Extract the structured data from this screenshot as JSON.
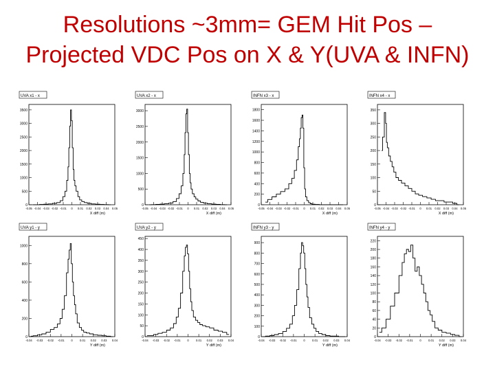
{
  "slide": {
    "title_line1": "Resolutions ~3mm= GEM Hit Pos –",
    "title_line2": "Projected VDC Pos on X & Y(UVA & INFN)"
  },
  "chart_data": [
    {
      "type": "histogram",
      "title": "UVA x1 - x",
      "xlabel": "X diff (m)",
      "xticks": [
        "-0.05",
        "-0.04",
        "-0.03",
        "-0.02",
        "-0.01",
        "0",
        "0.01",
        "0.02",
        "0.03",
        "0.04",
        "0.05"
      ],
      "yticks": [
        0,
        500,
        1000,
        1500,
        2000,
        2500,
        3000,
        3500
      ],
      "xlim": [
        -0.05,
        0.05
      ],
      "ylim": [
        0,
        3700
      ],
      "x": [
        -0.045,
        -0.04,
        -0.035,
        -0.03,
        -0.025,
        -0.02,
        -0.015,
        -0.012,
        -0.009,
        -0.007,
        -0.005,
        -0.004,
        -0.003,
        -0.002,
        -0.001,
        0,
        0.001,
        0.002,
        0.003,
        0.004,
        0.006,
        0.008,
        0.01,
        0.013,
        0.016,
        0.02,
        0.025,
        0.03,
        0.035,
        0.04,
        0.045
      ],
      "values": [
        0,
        0,
        10,
        20,
        30,
        50,
        80,
        150,
        300,
        500,
        900,
        1400,
        2100,
        2900,
        3500,
        3100,
        2100,
        1300,
        900,
        700,
        500,
        300,
        180,
        120,
        80,
        50,
        30,
        20,
        10,
        5,
        0
      ]
    },
    {
      "type": "histogram",
      "title": "UVA x2 - x",
      "xlabel": "X diff (m)",
      "xticks": [
        "-0.05",
        "-0.04",
        "-0.03",
        "-0.02",
        "-0.01",
        "0",
        "0.01",
        "0.02",
        "0.03",
        "0.04",
        "0.05"
      ],
      "yticks": [
        0,
        500,
        1000,
        1500,
        2000,
        2500,
        3000
      ],
      "xlim": [
        -0.05,
        0.05
      ],
      "ylim": [
        0,
        3200
      ],
      "x": [
        -0.045,
        -0.04,
        -0.035,
        -0.03,
        -0.025,
        -0.02,
        -0.015,
        -0.012,
        -0.009,
        -0.007,
        -0.005,
        -0.004,
        -0.003,
        -0.002,
        -0.001,
        0,
        0.001,
        0.002,
        0.003,
        0.004,
        0.006,
        0.008,
        0.01,
        0.013,
        0.016,
        0.02,
        0.025,
        0.03,
        0.035,
        0.04,
        0.045
      ],
      "values": [
        0,
        5,
        10,
        20,
        30,
        50,
        100,
        200,
        350,
        600,
        1000,
        1600,
        2300,
        2900,
        3050,
        2300,
        1600,
        1000,
        700,
        500,
        350,
        250,
        180,
        120,
        80,
        50,
        30,
        20,
        10,
        5,
        0
      ]
    },
    {
      "type": "histogram",
      "title": "INFN x3 - x",
      "xlabel": "X diff (m)",
      "xticks": [
        "-0.05",
        "-0.04",
        "-0.03",
        "-0.02",
        "-0.01",
        "0",
        "0.01",
        "0.02",
        "0.03",
        "0.04",
        "0.05"
      ],
      "yticks": [
        0,
        200,
        400,
        600,
        800,
        1000,
        1200,
        1400,
        1600,
        1800
      ],
      "xlim": [
        -0.05,
        0.05
      ],
      "ylim": [
        0,
        1900
      ],
      "x": [
        -0.045,
        -0.04,
        -0.035,
        -0.03,
        -0.025,
        -0.02,
        -0.016,
        -0.013,
        -0.01,
        -0.008,
        -0.006,
        -0.005,
        -0.004,
        -0.003,
        -0.002,
        -0.001,
        0,
        0.001,
        0.002,
        0.004,
        0.006,
        0.008,
        0.01,
        0.015,
        0.02,
        0.025,
        0.03,
        0.035,
        0.04,
        0.045
      ],
      "values": [
        50,
        100,
        150,
        200,
        250,
        300,
        400,
        500,
        650,
        850,
        1100,
        1250,
        1450,
        1650,
        1700,
        1450,
        700,
        300,
        150,
        80,
        40,
        20,
        10,
        5,
        0,
        0,
        0,
        0,
        0,
        0
      ]
    },
    {
      "type": "histogram",
      "title": "INFN x4 - x",
      "xlabel": "X diff (m)",
      "xticks": [
        "-0.05",
        "-0.04",
        "-0.03",
        "-0.02",
        "-0.01",
        "0",
        "0.01",
        "0.02",
        "0.03",
        "0.04",
        "0.05"
      ],
      "yticks": [
        0,
        50,
        100,
        150,
        200,
        250,
        300,
        350
      ],
      "xlim": [
        -0.05,
        0.05
      ],
      "ylim": [
        0,
        370
      ],
      "x": [
        -0.045,
        -0.043,
        -0.041,
        -0.04,
        -0.039,
        -0.038,
        -0.036,
        -0.034,
        -0.032,
        -0.03,
        -0.027,
        -0.024,
        -0.02,
        -0.016,
        -0.012,
        -0.008,
        -0.004,
        0,
        0.005,
        0.01,
        0.015,
        0.02,
        0.025,
        0.03,
        0.035,
        0.04,
        0.045
      ],
      "values": [
        200,
        250,
        340,
        300,
        230,
        210,
        180,
        160,
        140,
        120,
        100,
        90,
        80,
        70,
        60,
        50,
        40,
        35,
        30,
        25,
        20,
        15,
        15,
        10,
        10,
        5,
        0
      ]
    },
    {
      "type": "histogram",
      "title": "UVA y1 - y",
      "xlabel": "Y diff (m)",
      "xticks": [
        "-0.04",
        "-0.03",
        "-0.02",
        "-0.01",
        "0",
        "0.01",
        "0.02",
        "0.03",
        "0.04"
      ],
      "yticks": [
        0,
        200,
        400,
        600,
        800,
        1000
      ],
      "xlim": [
        -0.04,
        0.04
      ],
      "ylim": [
        0,
        1100
      ],
      "x": [
        -0.038,
        -0.034,
        -0.03,
        -0.026,
        -0.022,
        -0.018,
        -0.015,
        -0.012,
        -0.01,
        -0.008,
        -0.006,
        -0.004,
        -0.003,
        -0.002,
        -0.001,
        0,
        0.001,
        0.002,
        0.003,
        0.004,
        0.006,
        0.008,
        0.01,
        0.012,
        0.015,
        0.018,
        0.022,
        0.026,
        0.03,
        0.034,
        0.038
      ],
      "values": [
        5,
        10,
        20,
        30,
        50,
        80,
        100,
        140,
        200,
        300,
        450,
        700,
        850,
        950,
        1020,
        800,
        600,
        450,
        350,
        250,
        150,
        100,
        70,
        50,
        40,
        30,
        20,
        15,
        10,
        5,
        0
      ]
    },
    {
      "type": "histogram",
      "title": "UVA y2 - y",
      "xlabel": "Y diff (m)",
      "xticks": [
        "-0.04",
        "-0.03",
        "-0.02",
        "-0.01",
        "0",
        "0.01",
        "0.02",
        "0.03",
        "0.04"
      ],
      "yticks": [
        0,
        50,
        100,
        150,
        200,
        250,
        300,
        350,
        400,
        450
      ],
      "xlim": [
        -0.04,
        0.04
      ],
      "ylim": [
        0,
        460
      ],
      "x": [
        -0.038,
        -0.034,
        -0.03,
        -0.026,
        -0.022,
        -0.018,
        -0.015,
        -0.012,
        -0.01,
        -0.008,
        -0.006,
        -0.004,
        -0.003,
        -0.002,
        -0.001,
        0,
        0.001,
        0.002,
        0.003,
        0.004,
        0.006,
        0.008,
        0.01,
        0.012,
        0.015,
        0.018,
        0.022,
        0.026,
        0.03,
        0.034,
        0.038
      ],
      "values": [
        5,
        5,
        10,
        15,
        20,
        30,
        40,
        60,
        90,
        130,
        200,
        300,
        370,
        410,
        420,
        380,
        300,
        220,
        160,
        120,
        90,
        75,
        65,
        55,
        50,
        45,
        40,
        30,
        25,
        20,
        10
      ]
    },
    {
      "type": "histogram",
      "title": "INFN y3 - y",
      "xlabel": "Y diff (m)",
      "xticks": [
        "-0.04",
        "-0.03",
        "-0.02",
        "-0.01",
        "0",
        "0.01",
        "0.02",
        "0.03",
        "0.04"
      ],
      "yticks": [
        0,
        100,
        200,
        300,
        400,
        500,
        600,
        700,
        800,
        900
      ],
      "xlim": [
        -0.04,
        0.04
      ],
      "ylim": [
        0,
        960
      ],
      "x": [
        -0.038,
        -0.034,
        -0.03,
        -0.026,
        -0.022,
        -0.018,
        -0.015,
        -0.012,
        -0.01,
        -0.008,
        -0.006,
        -0.004,
        -0.003,
        -0.002,
        -0.001,
        0,
        0.001,
        0.002,
        0.003,
        0.004,
        0.006,
        0.008,
        0.01,
        0.012,
        0.015,
        0.018,
        0.022,
        0.026,
        0.03,
        0.034,
        0.038
      ],
      "values": [
        0,
        5,
        10,
        20,
        30,
        50,
        80,
        120,
        200,
        300,
        450,
        650,
        800,
        900,
        870,
        800,
        650,
        500,
        380,
        280,
        180,
        120,
        80,
        50,
        30,
        20,
        10,
        5,
        5,
        0,
        0
      ]
    },
    {
      "type": "histogram",
      "title": "INFN y4 - y",
      "xlabel": "Y diff (m)",
      "xticks": [
        "-0.04",
        "-0.03",
        "-0.02",
        "-0.01",
        "0",
        "0.01",
        "0.02",
        "0.03",
        "0.04"
      ],
      "yticks": [
        0,
        20,
        40,
        60,
        80,
        100,
        120,
        140,
        160,
        180,
        200,
        220
      ],
      "xlim": [
        -0.04,
        0.04
      ],
      "ylim": [
        0,
        230
      ],
      "x": [
        -0.038,
        -0.034,
        -0.03,
        -0.026,
        -0.022,
        -0.018,
        -0.016,
        -0.014,
        -0.012,
        -0.01,
        -0.008,
        -0.006,
        -0.004,
        -0.002,
        0,
        0.002,
        0.004,
        0.006,
        0.008,
        0.01,
        0.012,
        0.015,
        0.018,
        0.022,
        0.026,
        0.03,
        0.034,
        0.038
      ],
      "values": [
        10,
        20,
        40,
        70,
        100,
        140,
        170,
        190,
        200,
        195,
        210,
        180,
        150,
        160,
        140,
        120,
        100,
        80,
        60,
        50,
        35,
        20,
        15,
        10,
        8,
        5,
        3,
        0
      ]
    }
  ]
}
